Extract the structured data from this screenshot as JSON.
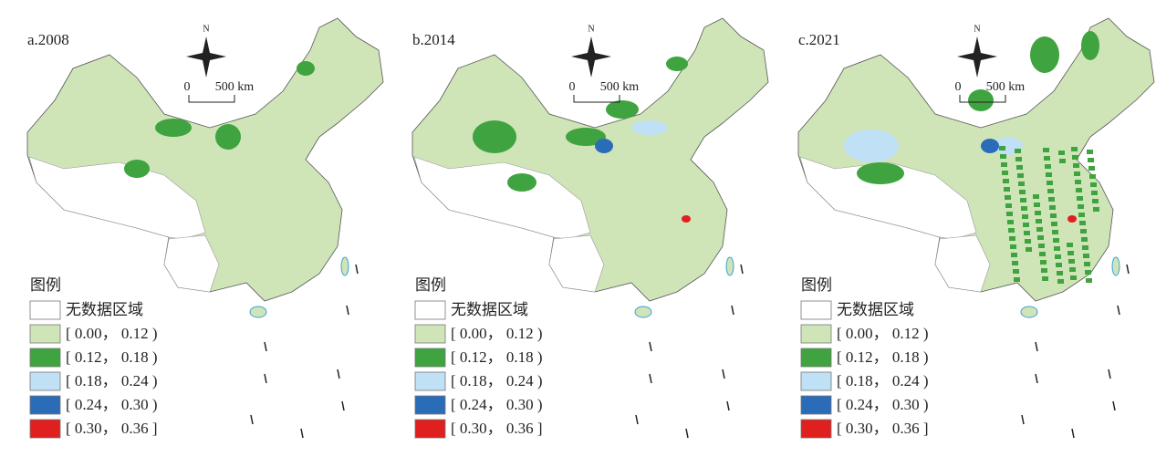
{
  "panels": [
    {
      "label": "a.2008"
    },
    {
      "label": "b.2014"
    },
    {
      "label": "c.2021"
    }
  ],
  "compass": {
    "north": "N"
  },
  "scale": {
    "zero": "0",
    "distance": "500 km"
  },
  "legend": {
    "title": "图例",
    "items": [
      {
        "label": "无数据区域",
        "color": "#ffffff"
      },
      {
        "label": "[ 0.00， 0.12 )",
        "color": "#cfe5b8"
      },
      {
        "label": "[ 0.12， 0.18 )",
        "color": "#3fa33f"
      },
      {
        "label": "[ 0.18， 0.24 )",
        "color": "#bfe0f5"
      },
      {
        "label": "[ 0.24， 0.30 )",
        "color": "#2b6cb8"
      },
      {
        "label": "[ 0.30， 0.36 ]",
        "color": "#e01f1f"
      }
    ]
  }
}
